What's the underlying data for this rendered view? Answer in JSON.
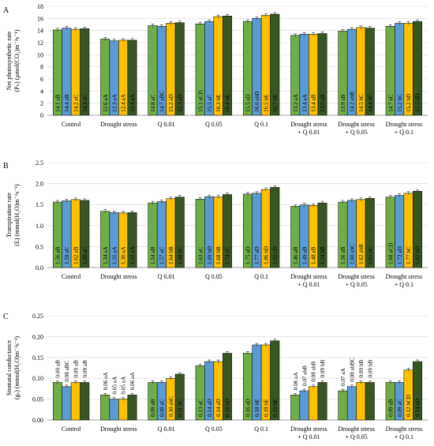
{
  "chart_data": [
    {
      "type": "bar",
      "panel_label": "A",
      "ylabel_lines": [
        "Net photosynthetic rate",
        "(Pₙ) (μmol(CO₂)m⁻²s⁻¹)"
      ],
      "ylim": [
        0,
        18
      ],
      "yticks": [
        0,
        2,
        4,
        6,
        8,
        10,
        12,
        14,
        16,
        18
      ],
      "categories": [
        [
          "Control"
        ],
        [
          "Drought stress"
        ],
        [
          "Q 0.01"
        ],
        [
          "Q 0.05"
        ],
        [
          "Q 0.1"
        ],
        [
          "Drought stress",
          "+ Q 0.01"
        ],
        [
          "Drought stress",
          "+ Q 0.05"
        ],
        [
          "Drought stress",
          "+ Q 0.1"
        ]
      ],
      "label_position": "inside",
      "series": [
        {
          "values": [
            14.1,
            12.6,
            14.8,
            15.1,
            15.5,
            13.2,
            13.9,
            14.7
          ],
          "labels": [
            "14.1 aB",
            "12.6 aA",
            "14.8 aC",
            "15.1 aCD",
            "15.5 aD",
            "13.2 aA",
            "13.9 aB",
            "14.7 aC"
          ]
        },
        {
          "values": [
            14.4,
            12.3,
            14.7,
            15.5,
            16.0,
            13.4,
            14.2,
            15.2
          ],
          "labels": [
            "14.4 aB",
            "12.3 aA",
            "14.7 aBC",
            "15.5 aC",
            "16.0 abD",
            "13.4 aA",
            "14.2 abB",
            "15.2 bC"
          ]
        },
        {
          "values": [
            14.2,
            12.4,
            15.2,
            16.3,
            16.5,
            13.4,
            14.5,
            15.2
          ],
          "labels": [
            "14.2 aC",
            "12.4 aA",
            "15.2 aD",
            "16.3 bE",
            "16.5 bE",
            "13.4 aB",
            "14.5 bC",
            "15.2 bD"
          ]
        },
        {
          "values": [
            14.3,
            12.4,
            15.3,
            16.4,
            16.7,
            13.5,
            14.4,
            15.5
          ],
          "labels": [
            "14.3 aC",
            "12.4 aA",
            "15.3 aD",
            "16.4 bE",
            "16.7 bE",
            "13.5 aB",
            "14.4 bC",
            "15.5 bD"
          ]
        }
      ]
    },
    {
      "type": "bar",
      "panel_label": "B",
      "ylabel_lines": [
        "Transpiration rate",
        "(E) (mmol(H₂O)m⁻²s⁻¹)"
      ],
      "ylim": [
        0,
        2.5
      ],
      "yticks": [
        0,
        0.5,
        1,
        1.5,
        2,
        2.5
      ],
      "ytick_labels": [
        "0.0",
        "0.5",
        "1.0",
        "1.5",
        "2.0",
        "2.5"
      ],
      "categories": [
        [
          "Control"
        ],
        [
          "Drought stress"
        ],
        [
          "Q 0.01"
        ],
        [
          "Q 0.05"
        ],
        [
          "Q 0.1"
        ],
        [
          "Drought stress",
          "+ Q 0.01"
        ],
        [
          "Drought stress",
          "+ Q 0.05"
        ],
        [
          "Drought stress",
          "+ Q 0.1"
        ]
      ],
      "label_position": "inside",
      "series": [
        {
          "values": [
            1.56,
            1.34,
            1.54,
            1.63,
            1.75,
            1.46,
            1.56,
            1.68
          ],
          "labels": [
            "1.56 aB",
            "1.34 aA",
            "1.54 aB",
            "1.63 aC",
            "1.75 aD",
            "1.46 aB",
            "1.56 aB",
            "1.68 aCD"
          ]
        },
        {
          "values": [
            1.59,
            1.31,
            1.57,
            1.69,
            1.77,
            1.49,
            1.6,
            1.72
          ],
          "labels": [
            "1.59 aC",
            "1.31 aA",
            "1.57 aC",
            "1.69 bD",
            "1.77 aD",
            "1.49 aB",
            "1.60 abC",
            "1.72 aD"
          ]
        },
        {
          "values": [
            1.62,
            1.3,
            1.64,
            1.68,
            1.86,
            1.48,
            1.62,
            1.77
          ],
          "labels": [
            "1.62 aB",
            "1.30 aA",
            "1.64 bB",
            "1.68 bB",
            "1.86 bD",
            "1.48 aB",
            "1.62 abB",
            "1.77 bC"
          ]
        },
        {
          "values": [
            1.6,
            1.31,
            1.68,
            1.74,
            1.91,
            1.54,
            1.65,
            1.82
          ],
          "labels": [
            "1.60 aC",
            "1.31 aA",
            "1.68 bC",
            "1.74 cC",
            "1.91 cD",
            "1.54 bB",
            "1.65 bC",
            "1.82 bD"
          ]
        }
      ]
    },
    {
      "type": "bar",
      "panel_label": "C",
      "ylabel_lines": [
        "Stomatal conductance",
        "(gₛ) (mmol(H₂O)m⁻²s⁻¹)"
      ],
      "ylim": [
        0,
        0.25
      ],
      "yticks": [
        0,
        0.05,
        0.1,
        0.15,
        0.2,
        0.25
      ],
      "ytick_labels": [
        "0.00",
        "0.05",
        "0.10",
        "0.15",
        "0.20",
        "0.25"
      ],
      "categories": [
        [
          "Control"
        ],
        [
          "Drought stress"
        ],
        [
          "Q 0.01"
        ],
        [
          "Q 0.05"
        ],
        [
          "Q 0.1"
        ],
        [
          "Drought stress",
          "+ Q 0.01"
        ],
        [
          "Drought stress",
          "+ Q 0.05"
        ],
        [
          "Drought stress",
          "+ Q 0.1"
        ]
      ],
      "label_position": "mixed",
      "label_inside": [
        [
          false,
          false,
          true,
          true,
          true,
          false,
          false,
          true
        ],
        [
          false,
          false,
          true,
          true,
          true,
          false,
          false,
          true
        ],
        [
          false,
          false,
          true,
          true,
          true,
          false,
          false,
          true
        ],
        [
          false,
          false,
          true,
          true,
          true,
          false,
          false,
          true
        ]
      ],
      "series": [
        {
          "values": [
            0.09,
            0.06,
            0.09,
            0.13,
            0.16,
            0.06,
            0.07,
            0.09
          ],
          "labels": [
            "0.09 aB",
            "0.06 aA",
            "0.09 aB",
            "0.13 aC",
            "0.16 aD",
            "0.06 aA",
            "0.07 aA",
            "0.09 aB"
          ]
        },
        {
          "values": [
            0.08,
            0.05,
            0.09,
            0.14,
            0.18,
            0.07,
            0.08,
            0.09
          ],
          "labels": [
            "0.08 aBC",
            "0.05 aA",
            "0.09 aC",
            "0.14 aD",
            "0.18 bE",
            "0.07 abB",
            "0.08 abBC",
            "0.09 aC"
          ]
        },
        {
          "values": [
            0.09,
            0.05,
            0.1,
            0.14,
            0.18,
            0.08,
            0.09,
            0.12
          ],
          "labels": [
            "0.09 aB",
            "0.05 aA",
            "0.10 abC",
            "0.14 aD",
            "0.18 bE",
            "0.08 abB",
            "0.09 bB",
            "0.12 bCD"
          ]
        },
        {
          "values": [
            0.09,
            0.06,
            0.11,
            0.16,
            0.19,
            0.09,
            0.09,
            0.14
          ],
          "labels": [
            "0.09 aB",
            "0.06 aA",
            "0.11 bC",
            "0.16 bD",
            "0.19 bE",
            "0.09 bB",
            "0.09 bB",
            "0.14 bD"
          ]
        }
      ]
    }
  ],
  "colors": {
    "series": [
      "#70ad47",
      "#5b9bd5",
      "#ffc000",
      "#375623"
    ],
    "bar_border": "#000000",
    "axis": "#808080",
    "grid": "#d9d9d9",
    "text": "#000000"
  }
}
